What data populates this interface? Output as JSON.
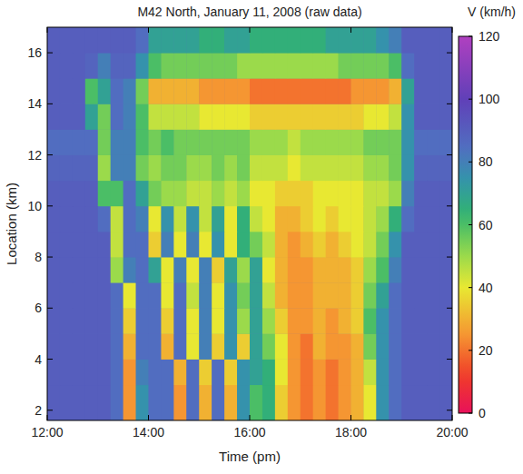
{
  "chart_data": {
    "type": "heatmap",
    "title": "M42 North, January 11, 2008 (raw data)",
    "x_label": "Time (pm)",
    "y_label": "Location (km)",
    "xlim": [
      12,
      20
    ],
    "xticks": [
      {
        "value": 12,
        "label": "12:00"
      },
      {
        "value": 14,
        "label": "14:00"
      },
      {
        "value": 16,
        "label": "16:00"
      },
      {
        "value": 18,
        "label": "18:00"
      },
      {
        "value": 20,
        "label": "20:00"
      }
    ],
    "ylim": [
      1.6,
      17
    ],
    "yticks": [
      2,
      4,
      6,
      8,
      10,
      12,
      14,
      16
    ],
    "x_edges": [
      12,
      12.25,
      12.5,
      12.75,
      13,
      13.25,
      13.5,
      13.75,
      14,
      14.25,
      14.5,
      14.75,
      15,
      15.25,
      15.5,
      15.75,
      16,
      16.25,
      16.5,
      16.75,
      17,
      17.25,
      17.5,
      17.75,
      18,
      18.25,
      18.5,
      18.75,
      19,
      19.25,
      19.5,
      19.75,
      20
    ],
    "y_edges": [
      1.6,
      3,
      4,
      5,
      6,
      7,
      8,
      9,
      10,
      11,
      12,
      13,
      14,
      15,
      16,
      17
    ],
    "cells": [
      [
        90,
        90,
        90,
        90,
        90,
        85,
        25,
        75,
        85,
        85,
        25,
        85,
        30,
        85,
        30,
        75,
        60,
        65,
        35,
        25,
        20,
        25,
        20,
        25,
        30,
        40,
        75,
        85,
        90,
        90,
        90,
        90
      ],
      [
        90,
        90,
        90,
        90,
        90,
        85,
        25,
        80,
        85,
        85,
        30,
        85,
        35,
        85,
        35,
        75,
        70,
        65,
        40,
        25,
        20,
        25,
        20,
        25,
        30,
        45,
        75,
        85,
        90,
        90,
        90,
        90
      ],
      [
        90,
        90,
        90,
        90,
        90,
        85,
        30,
        85,
        85,
        30,
        85,
        40,
        80,
        35,
        75,
        35,
        70,
        55,
        40,
        25,
        20,
        30,
        25,
        25,
        30,
        55,
        75,
        85,
        90,
        90,
        90,
        90
      ],
      [
        90,
        90,
        90,
        90,
        90,
        85,
        35,
        85,
        85,
        35,
        85,
        40,
        80,
        40,
        75,
        50,
        70,
        50,
        35,
        25,
        25,
        30,
        25,
        30,
        35,
        60,
        75,
        85,
        90,
        90,
        90,
        90
      ],
      [
        90,
        90,
        90,
        90,
        90,
        85,
        40,
        85,
        85,
        40,
        85,
        45,
        80,
        40,
        75,
        55,
        70,
        45,
        30,
        25,
        25,
        30,
        30,
        30,
        35,
        55,
        70,
        85,
        90,
        90,
        90,
        90
      ],
      [
        90,
        90,
        90,
        90,
        90,
        50,
        80,
        85,
        70,
        40,
        80,
        40,
        80,
        35,
        70,
        50,
        70,
        40,
        30,
        25,
        25,
        30,
        30,
        30,
        35,
        50,
        60,
        80,
        90,
        90,
        90,
        90
      ],
      [
        90,
        90,
        90,
        90,
        90,
        45,
        85,
        85,
        35,
        80,
        40,
        80,
        40,
        75,
        40,
        65,
        55,
        45,
        30,
        25,
        30,
        35,
        30,
        35,
        40,
        45,
        55,
        75,
        90,
        90,
        90,
        90
      ],
      [
        90,
        90,
        90,
        90,
        85,
        45,
        85,
        80,
        40,
        75,
        45,
        75,
        45,
        70,
        40,
        65,
        45,
        40,
        30,
        30,
        35,
        40,
        35,
        40,
        40,
        45,
        50,
        65,
        85,
        90,
        90,
        90
      ],
      [
        90,
        90,
        90,
        90,
        60,
        60,
        85,
        70,
        55,
        50,
        50,
        45,
        45,
        50,
        45,
        50,
        40,
        40,
        35,
        35,
        35,
        40,
        40,
        40,
        40,
        45,
        45,
        50,
        80,
        90,
        90,
        90
      ],
      [
        88,
        88,
        88,
        88,
        50,
        80,
        80,
        55,
        50,
        55,
        55,
        50,
        50,
        55,
        50,
        55,
        45,
        45,
        45,
        40,
        45,
        45,
        45,
        45,
        45,
        50,
        50,
        55,
        75,
        88,
        88,
        88
      ],
      [
        85,
        85,
        85,
        85,
        55,
        80,
        80,
        60,
        55,
        60,
        55,
        55,
        55,
        55,
        55,
        55,
        50,
        50,
        50,
        45,
        50,
        50,
        50,
        50,
        50,
        55,
        55,
        55,
        75,
        85,
        85,
        85
      ],
      [
        90,
        90,
        90,
        70,
        55,
        85,
        80,
        60,
        45,
        45,
        45,
        45,
        40,
        40,
        40,
        40,
        35,
        35,
        35,
        35,
        35,
        35,
        35,
        35,
        35,
        40,
        40,
        45,
        75,
        90,
        90,
        90
      ],
      [
        90,
        90,
        90,
        60,
        70,
        85,
        80,
        55,
        30,
        30,
        30,
        30,
        25,
        25,
        25,
        25,
        20,
        20,
        20,
        20,
        20,
        20,
        20,
        20,
        25,
        25,
        25,
        30,
        70,
        90,
        90,
        90
      ],
      [
        90,
        90,
        90,
        88,
        80,
        88,
        88,
        75,
        60,
        55,
        55,
        55,
        55,
        55,
        55,
        50,
        50,
        50,
        50,
        50,
        50,
        50,
        50,
        55,
        55,
        55,
        55,
        60,
        85,
        90,
        90,
        90
      ],
      [
        90,
        90,
        90,
        90,
        90,
        90,
        90,
        85,
        70,
        70,
        70,
        70,
        65,
        65,
        70,
        70,
        65,
        65,
        65,
        65,
        65,
        65,
        70,
        70,
        70,
        70,
        75,
        80,
        90,
        90,
        90,
        90
      ]
    ],
    "color_label": "V (km/h)",
    "color_range": [
      0,
      120
    ],
    "color_ticks": [
      0,
      20,
      40,
      60,
      80,
      100,
      120
    ]
  }
}
